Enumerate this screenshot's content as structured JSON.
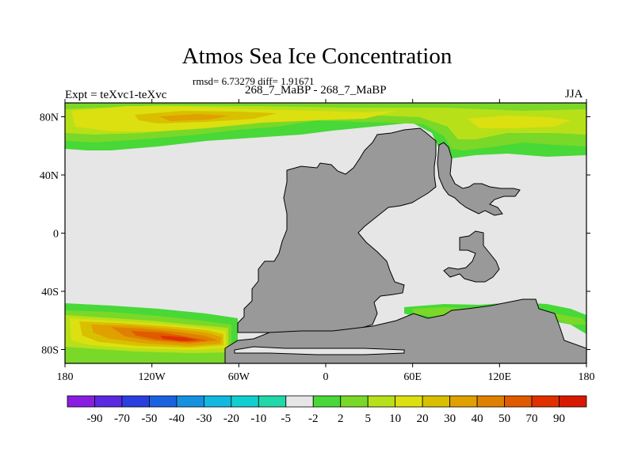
{
  "title": "Atmos Sea Ice Concentration",
  "stats": "rmsd= 6.73279 diff= 1.91671",
  "left_label": "Expt = teXvc1-teXvc",
  "center_label": "268_7_MaBP - 268_7_MaBP",
  "right_label": "JJA",
  "lat_ticks": [
    "80N",
    "40N",
    "0",
    "40S",
    "80S"
  ],
  "lon_ticks": [
    "180",
    "120W",
    "60W",
    "0",
    "60E",
    "120E",
    "180"
  ],
  "colorbar": {
    "labels": [
      "-90",
      "-70",
      "-50",
      "-40",
      "-30",
      "-20",
      "-10",
      "-5",
      "-2",
      "2",
      "5",
      "10",
      "20",
      "30",
      "40",
      "50",
      "70",
      "90"
    ],
    "colors": [
      "#8a1ee0",
      "#5a28e0",
      "#2a3fe0",
      "#1a63e0",
      "#1492e0",
      "#12b8e0",
      "#10cfd0",
      "#20d8a8",
      "#e6e6e6",
      "#48d838",
      "#7ad828",
      "#b8e018",
      "#dce010",
      "#d8c000",
      "#e0a000",
      "#e08000",
      "#e05a00",
      "#e03000",
      "#d81800"
    ]
  },
  "map": {
    "land_color": "#999999",
    "nodata_color": "#e6e6e6"
  }
}
